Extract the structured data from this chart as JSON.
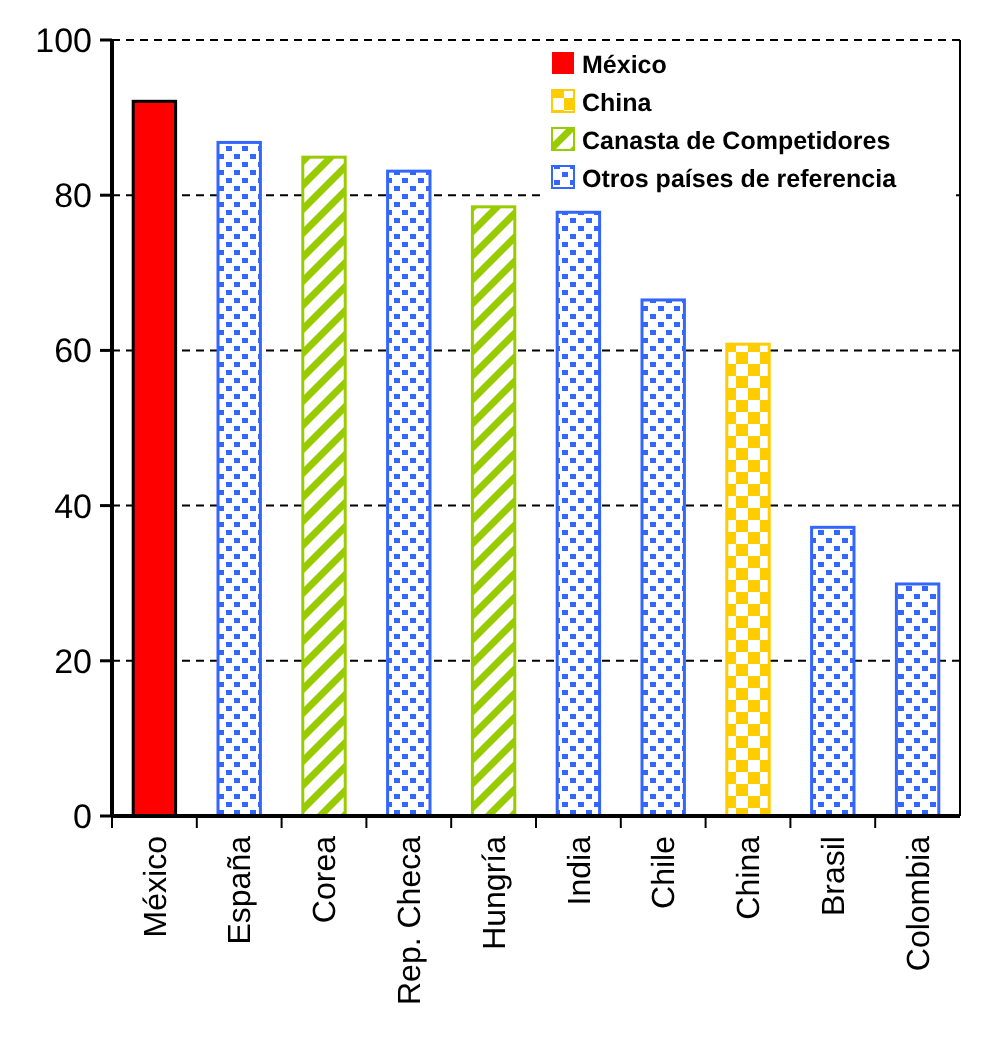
{
  "chart_data": {
    "type": "bar",
    "categories": [
      "México",
      "España",
      "Corea",
      "Rep. Checa",
      "Hungría",
      "India",
      "Chile",
      "China",
      "Brasil",
      "Colombia"
    ],
    "series": [
      {
        "name": "México",
        "color": "#ff0000",
        "values": [
          92.1,
          null,
          null,
          null,
          null,
          null,
          null,
          null,
          null,
          null
        ]
      },
      {
        "name": "China",
        "color": "#ffcc00",
        "values": [
          null,
          null,
          null,
          null,
          null,
          null,
          null,
          60.8,
          null,
          null
        ]
      },
      {
        "name": "Canasta de Competidores",
        "color": "#99cc00",
        "values": [
          null,
          null,
          84.9,
          null,
          78.5,
          null,
          null,
          null,
          null,
          null
        ]
      },
      {
        "name": "Otros países de referencia",
        "color": "#3366ff",
        "values": [
          null,
          86.8,
          null,
          83.1,
          null,
          77.8,
          66.5,
          null,
          37.2,
          29.9
        ]
      }
    ],
    "ylim": [
      0,
      100
    ],
    "yticks": [
      0,
      20,
      40,
      60,
      80,
      100
    ],
    "grid": "y",
    "legend": "top right"
  }
}
